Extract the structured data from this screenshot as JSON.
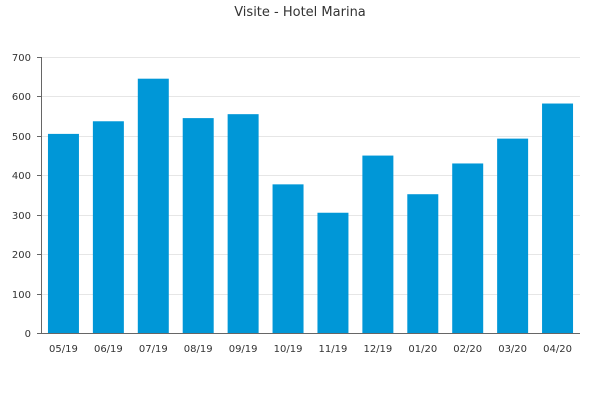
{
  "chart_data": {
    "type": "bar",
    "title": "Visite - Hotel Marina",
    "xlabel": "",
    "ylabel": "",
    "categories": [
      "05/19",
      "06/19",
      "07/19",
      "08/19",
      "09/19",
      "10/19",
      "11/19",
      "12/19",
      "01/20",
      "02/20",
      "03/20",
      "04/20"
    ],
    "values": [
      505,
      537,
      645,
      545,
      555,
      377,
      305,
      450,
      352,
      430,
      493,
      582
    ],
    "ylim": [
      0,
      700
    ],
    "yticks": [
      0,
      100,
      200,
      300,
      400,
      500,
      600,
      700
    ],
    "grid": true,
    "legend": "none",
    "bar_color": "#0097d7"
  }
}
